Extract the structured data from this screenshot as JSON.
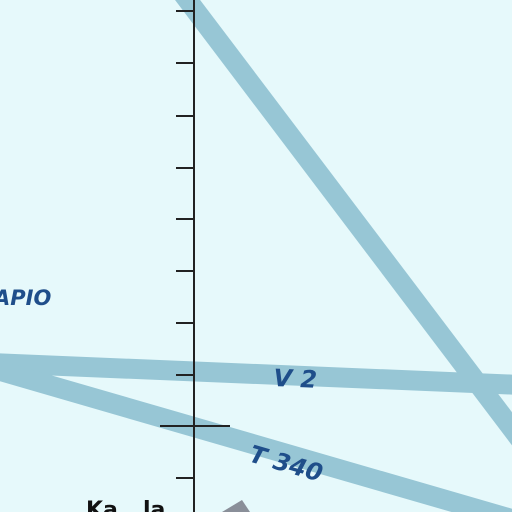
{
  "map": {
    "background_color": "#e6f9fb",
    "airway_color": "#97c6d5",
    "label_color": "#1f4e8a",
    "tick_line_color": "#222222"
  },
  "labels": {
    "fix_partial": "APIO",
    "airway_v2": "V 2",
    "airway_t340": "T 340",
    "place_partial": "Ka...la"
  }
}
